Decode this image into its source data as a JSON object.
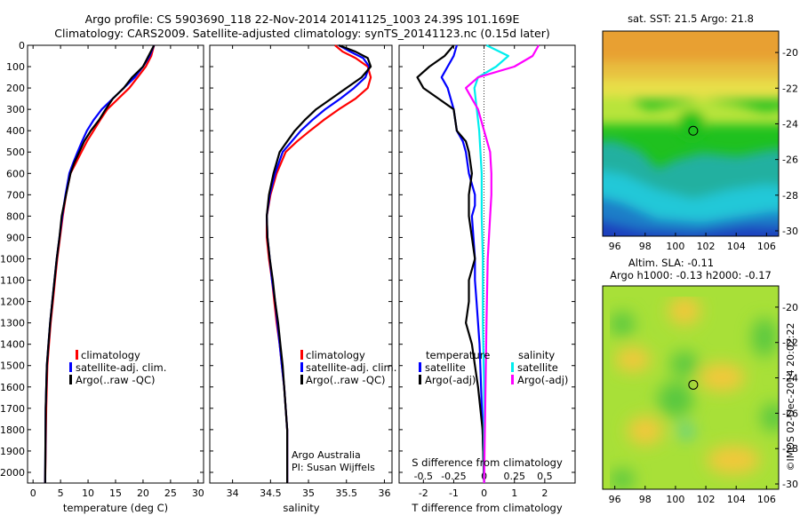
{
  "header": {
    "line1": "Argo profile: CS 5903690_118 22-Nov-2014 20141125_1003 24.39S 101.169E",
    "line2": "Climatology: CARS2009. Satellite-adjusted climatology: synTS_20141123.nc (0.15d later)"
  },
  "footer": {
    "credit": "©IMOS 02-Dec-2014 20:02:22"
  },
  "colors": {
    "climatology": "#ff0000",
    "satellite": "#0000ff",
    "argo": "#000000",
    "sal_satellite": "#00eeee",
    "sal_argo": "#ff00ff"
  },
  "chart_data": [
    {
      "type": "line",
      "title": "",
      "xlabel": "temperature (deg C)",
      "xlim": [
        -1,
        31
      ],
      "xticks": [
        0,
        5,
        10,
        15,
        20,
        25,
        30
      ],
      "ylim": [
        2050,
        0
      ],
      "yticks": [
        0,
        100,
        200,
        300,
        400,
        500,
        600,
        700,
        800,
        900,
        1000,
        1100,
        1200,
        1300,
        1400,
        1500,
        1600,
        1700,
        1800,
        1900,
        2000
      ],
      "legend": [
        "climatology",
        "satellite-adj. clim.",
        "Argo(..raw -QC)"
      ],
      "series": [
        {
          "name": "climatology",
          "color": "#ff0000",
          "x": [
            22,
            21.5,
            20.5,
            19,
            17.5,
            15.5,
            13.5,
            12.2,
            11,
            9.8,
            8.8,
            7.8,
            6.8,
            6.0,
            5.4,
            4.9,
            4.4,
            4.0,
            3.6,
            3.2,
            2.9,
            2.6,
            2.4,
            2.2
          ],
          "y": [
            0,
            50,
            100,
            150,
            200,
            250,
            300,
            350,
            400,
            450,
            500,
            550,
            600,
            700,
            800,
            900,
            1000,
            1100,
            1200,
            1300,
            1400,
            1500,
            1700,
            2050
          ]
        },
        {
          "name": "satellite-adj. clim.",
          "color": "#0000ff",
          "x": [
            22,
            21.2,
            20,
            18.5,
            16.5,
            14.5,
            12.5,
            11,
            9.8,
            8.9,
            8.1,
            7.3,
            6.6,
            5.9,
            5.3,
            4.8,
            4.3,
            3.9,
            3.5,
            3.1,
            2.8,
            2.5,
            2.3,
            2.2
          ],
          "y": [
            0,
            50,
            100,
            150,
            200,
            250,
            300,
            350,
            400,
            450,
            500,
            550,
            600,
            700,
            800,
            900,
            1000,
            1100,
            1200,
            1300,
            1400,
            1500,
            1700,
            2050
          ]
        },
        {
          "name": "Argo(..raw -QC)",
          "color": "#000000",
          "x": [
            22,
            21,
            20,
            18,
            16.5,
            14.5,
            13.2,
            12,
            10.5,
            9.3,
            8.4,
            7.5,
            6.8,
            6.0,
            5.2,
            4.8,
            4.3,
            3.9,
            3.5,
            3.1,
            2.8,
            2.5,
            2.3,
            2.2
          ],
          "y": [
            0,
            50,
            100,
            150,
            200,
            250,
            300,
            350,
            400,
            450,
            500,
            550,
            600,
            700,
            800,
            900,
            1000,
            1100,
            1200,
            1300,
            1400,
            1500,
            1700,
            2050
          ]
        }
      ]
    },
    {
      "type": "line",
      "title": "",
      "xlabel": "salinity",
      "xlim": [
        33.7,
        36.1
      ],
      "xticks": [
        34,
        34.5,
        35,
        35.5,
        36
      ],
      "ylim": [
        2050,
        0
      ],
      "legend": [
        "climatology",
        "satellite-adj. clim.",
        "Argo(..raw -QC)"
      ],
      "annotations": [
        "Argo Australia",
        "PI: Susan Wijffels"
      ],
      "series": [
        {
          "name": "climatology",
          "color": "#ff0000",
          "x": [
            35.35,
            35.45,
            35.62,
            35.78,
            35.82,
            35.78,
            35.62,
            35.4,
            35.2,
            35.02,
            34.85,
            34.7,
            34.58,
            34.5,
            34.45,
            34.45,
            34.48,
            34.52,
            34.55,
            34.58,
            34.62,
            34.65,
            34.68,
            34.7,
            34.72,
            34.72
          ],
          "y": [
            0,
            30,
            60,
            100,
            150,
            200,
            250,
            300,
            350,
            400,
            450,
            500,
            600,
            700,
            800,
            900,
            1000,
            1100,
            1200,
            1300,
            1400,
            1500,
            1600,
            1700,
            1800,
            2050
          ]
        },
        {
          "name": "satellite-adj. clim.",
          "color": "#0000ff",
          "x": [
            35.4,
            35.55,
            35.72,
            35.8,
            35.75,
            35.6,
            35.42,
            35.22,
            35.05,
            34.9,
            34.78,
            34.66,
            34.56,
            34.49,
            34.45,
            34.46,
            34.49,
            34.52,
            34.56,
            34.59,
            34.62,
            34.65,
            34.68,
            34.7,
            34.72,
            34.72
          ],
          "y": [
            0,
            30,
            60,
            100,
            150,
            200,
            250,
            300,
            350,
            400,
            450,
            500,
            600,
            700,
            800,
            900,
            1000,
            1100,
            1200,
            1300,
            1400,
            1500,
            1600,
            1700,
            1800,
            2050
          ]
        },
        {
          "name": "Argo(..raw -QC)",
          "color": "#000000",
          "x": [
            35.4,
            35.62,
            35.78,
            35.82,
            35.7,
            35.5,
            35.3,
            35.1,
            34.95,
            34.82,
            34.72,
            34.62,
            34.54,
            34.48,
            34.45,
            34.46,
            34.49,
            34.53,
            34.56,
            34.6,
            34.63,
            34.66,
            34.68,
            34.7,
            34.72,
            34.72
          ],
          "y": [
            0,
            30,
            60,
            100,
            150,
            200,
            250,
            300,
            350,
            400,
            450,
            500,
            600,
            700,
            800,
            900,
            1000,
            1100,
            1200,
            1300,
            1400,
            1500,
            1600,
            1700,
            1800,
            2050
          ]
        }
      ]
    },
    {
      "type": "line",
      "title": "",
      "xlabel": "T difference from climatology",
      "xlim": [
        -2.8,
        3.0
      ],
      "xticks": [
        -2,
        -1,
        0,
        1,
        2
      ],
      "top_axis_label": "S difference from climatology",
      "top_ticks": [
        -0.5,
        -0.25,
        0,
        0.25,
        0.5
      ],
      "ylim": [
        2050,
        0
      ],
      "legend": [
        "temperature",
        "satellite",
        "Argo(-adj)",
        "salinity",
        "satellite",
        "Argo(-adj)"
      ],
      "series": [
        {
          "name": "temperature satellite",
          "color": "#0000ff",
          "x": [
            -0.9,
            -1.0,
            -1.2,
            -1.4,
            -1.2,
            -1.1,
            -1.0,
            -0.9,
            -0.7,
            -0.6,
            -0.5,
            -0.3,
            -0.3,
            -0.4,
            -0.35,
            -0.3,
            -0.3,
            -0.25,
            -0.2,
            -0.15,
            -0.1,
            -0.05,
            0
          ],
          "y": [
            0,
            50,
            100,
            150,
            200,
            250,
            300,
            400,
            450,
            500,
            600,
            700,
            750,
            800,
            900,
            1000,
            1100,
            1200,
            1300,
            1400,
            1600,
            1800,
            2050
          ]
        },
        {
          "name": "temperature Argo(-adj)",
          "color": "#000000",
          "x": [
            -1.0,
            -1.3,
            -1.8,
            -2.2,
            -2.0,
            -1.5,
            -1.0,
            -0.9,
            -0.6,
            -0.5,
            -0.4,
            -0.5,
            -0.5,
            -0.4,
            -0.3,
            -0.5,
            -0.5,
            -0.6,
            -0.4,
            -0.3,
            -0.2,
            -0.05,
            0
          ],
          "y": [
            0,
            50,
            100,
            150,
            200,
            250,
            300,
            400,
            450,
            500,
            600,
            700,
            800,
            900,
            1000,
            1100,
            1200,
            1300,
            1400,
            1500,
            1600,
            1800,
            2050
          ]
        },
        {
          "name": "salinity satellite",
          "color": "#00eeee",
          "x": [
            0.02,
            0.2,
            0.1,
            -0.05,
            -0.08,
            -0.06,
            -0.04,
            -0.03,
            -0.02,
            -0.02,
            -0.01,
            -0.01,
            0,
            0
          ],
          "y": [
            0,
            50,
            100,
            150,
            200,
            300,
            400,
            500,
            600,
            800,
            1000,
            1300,
            1600,
            2050
          ]
        },
        {
          "name": "salinity Argo(-adj)",
          "color": "#ff00ff",
          "x": [
            0.45,
            0.4,
            0.25,
            -0.05,
            -0.15,
            -0.1,
            -0.05,
            0,
            0.05,
            0.06,
            0.06,
            0.05,
            0.03,
            0.02,
            0
          ],
          "y": [
            0,
            50,
            100,
            150,
            200,
            250,
            300,
            400,
            500,
            600,
            700,
            800,
            1000,
            1300,
            2050
          ]
        }
      ]
    },
    {
      "type": "heatmap",
      "title": "sat. SST: 21.5 Argo: 21.8",
      "xticks": [
        96,
        98,
        100,
        102,
        104,
        106
      ],
      "yticks": [
        -20,
        -22,
        -24,
        -26,
        -28,
        -30
      ],
      "xlim": [
        95.2,
        106.8
      ],
      "ylim": [
        -30.3,
        -18.8
      ],
      "marker": {
        "lon": 101.169,
        "lat": -24.39
      }
    },
    {
      "type": "heatmap",
      "title": "Altim. SLA: -0.11",
      "subtitle": "Argo h1000: -0.13 h2000: -0.17",
      "xticks": [
        96,
        98,
        100,
        102,
        104,
        106
      ],
      "yticks": [
        -20,
        -22,
        -24,
        -26,
        -28,
        -30
      ],
      "xlim": [
        95.2,
        106.8
      ],
      "ylim": [
        -30.3,
        -18.8
      ],
      "marker": {
        "lon": 101.169,
        "lat": -24.39
      }
    }
  ]
}
